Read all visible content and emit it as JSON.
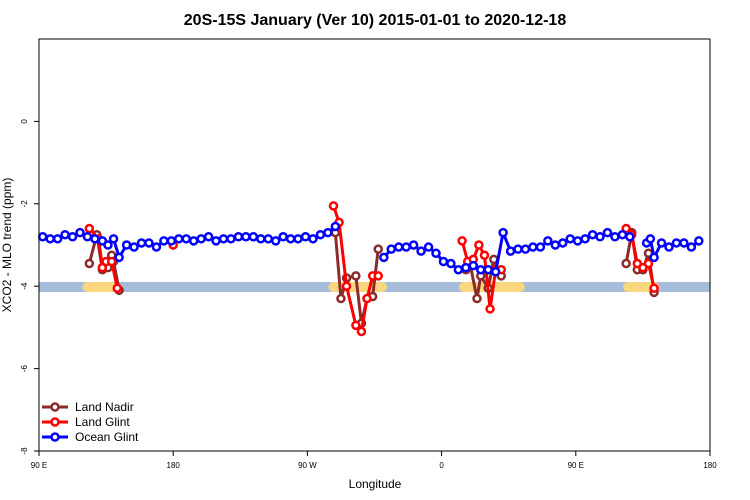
{
  "chart_data": {
    "type": "line",
    "title": "20S-15S January (Ver 10)   2015-01-01 to 2020-12-18",
    "xlabel": "Longitude",
    "ylabel": "XCO2 - MLO trend (ppm)",
    "xlim": [
      0,
      360
    ],
    "ylim": [
      -8,
      2
    ],
    "x_ticks": [
      {
        "value": 0,
        "label": "90 E"
      },
      {
        "value": 72,
        "label": "180"
      },
      {
        "value": 144,
        "label": "90 W"
      },
      {
        "value": 216,
        "label": "0"
      },
      {
        "value": 288,
        "label": "90 E"
      },
      {
        "value": 360,
        "label": "180"
      }
    ],
    "y_ticks": [
      {
        "value": 0,
        "label": "0"
      },
      {
        "value": -2,
        "label": "-2"
      },
      {
        "value": -4,
        "label": "-4"
      },
      {
        "value": -6,
        "label": "-6"
      },
      {
        "value": -8,
        "label": "-8"
      }
    ],
    "land_mask": {
      "y": -4.02,
      "ocean_color": "#a5bddb",
      "land_color": "#fad77f",
      "land_segments": [
        [
          26,
          40
        ],
        [
          158,
          184
        ],
        [
          228,
          258
        ],
        [
          316,
          330
        ]
      ]
    },
    "series": [
      {
        "name": "Land Nadir",
        "color": "#8b2b2b",
        "segments": [
          [
            [
              27,
              -3.45
            ],
            [
              31,
              -2.75
            ],
            [
              34,
              -3.6
            ],
            [
              37,
              -3.55
            ],
            [
              39,
              -3.25
            ],
            [
              40,
              -3.4
            ],
            [
              43,
              -4.1
            ]
          ],
          [
            [
              159,
              -2.7
            ],
            [
              162,
              -4.3
            ],
            [
              165,
              -3.8
            ],
            [
              170,
              -3.75
            ],
            [
              173,
              -4.9
            ],
            [
              176,
              -4.3
            ],
            [
              179,
              -4.25
            ],
            [
              182,
              -3.1
            ]
          ],
          [
            [
              229,
              -3.6
            ],
            [
              231,
              -3.4
            ],
            [
              235,
              -4.3
            ],
            [
              237,
              -3.75
            ],
            [
              241,
              -4.05
            ],
            [
              244,
              -3.35
            ],
            [
              248,
              -3.75
            ]
          ],
          [
            [
              315,
              -3.45
            ],
            [
              318,
              -2.7
            ],
            [
              321,
              -3.6
            ],
            [
              324,
              -3.6
            ],
            [
              327,
              -3.2
            ],
            [
              330,
              -4.15
            ]
          ]
        ]
      },
      {
        "name": "Land Glint",
        "color": "#ff0000",
        "segments": [
          [
            [
              27,
              -2.6
            ],
            [
              32,
              -2.85
            ],
            [
              34,
              -3.55
            ],
            [
              36,
              -3.4
            ],
            [
              39,
              -3.4
            ],
            [
              42,
              -4.05
            ]
          ],
          [
            [
              72,
              -3.0
            ]
          ],
          [
            [
              158,
              -2.05
            ],
            [
              161,
              -2.45
            ],
            [
              165,
              -4.0
            ],
            [
              170,
              -4.95
            ],
            [
              173,
              -5.1
            ],
            [
              176,
              -4.3
            ],
            [
              179,
              -3.75
            ],
            [
              182,
              -3.75
            ]
          ],
          [
            [
              227,
              -2.9
            ],
            [
              230,
              -3.4
            ],
            [
              233,
              -3.35
            ],
            [
              236,
              -3.0
            ],
            [
              239,
              -3.25
            ],
            [
              242,
              -4.55
            ],
            [
              245,
              -3.6
            ],
            [
              248,
              -3.6
            ]
          ],
          [
            [
              315,
              -2.6
            ],
            [
              318,
              -2.75
            ],
            [
              321,
              -3.45
            ],
            [
              324,
              -3.55
            ],
            [
              327,
              -3.45
            ],
            [
              330,
              -4.05
            ]
          ]
        ]
      },
      {
        "name": "Ocean Glint",
        "color": "#0000ff",
        "segments": [
          [
            [
              2,
              -2.8
            ],
            [
              6,
              -2.85
            ],
            [
              10,
              -2.85
            ],
            [
              14,
              -2.75
            ],
            [
              18,
              -2.8
            ],
            [
              22,
              -2.7
            ],
            [
              26,
              -2.8
            ],
            [
              30,
              -2.85
            ],
            [
              34,
              -2.9
            ],
            [
              37,
              -3.0
            ],
            [
              40,
              -2.85
            ],
            [
              43,
              -3.3
            ],
            [
              47,
              -3.0
            ],
            [
              51,
              -3.05
            ],
            [
              55,
              -2.95
            ],
            [
              59,
              -2.95
            ],
            [
              63,
              -3.05
            ],
            [
              67,
              -2.9
            ],
            [
              71,
              -2.9
            ],
            [
              75,
              -2.85
            ],
            [
              79,
              -2.85
            ],
            [
              83,
              -2.9
            ],
            [
              87,
              -2.85
            ],
            [
              91,
              -2.8
            ],
            [
              95,
              -2.9
            ],
            [
              99,
              -2.85
            ],
            [
              103,
              -2.85
            ],
            [
              107,
              -2.8
            ],
            [
              111,
              -2.8
            ],
            [
              115,
              -2.8
            ],
            [
              119,
              -2.85
            ],
            [
              123,
              -2.85
            ],
            [
              127,
              -2.9
            ],
            [
              131,
              -2.8
            ],
            [
              135,
              -2.85
            ],
            [
              139,
              -2.85
            ],
            [
              143,
              -2.8
            ],
            [
              147,
              -2.85
            ],
            [
              151,
              -2.75
            ],
            [
              155,
              -2.7
            ],
            [
              159,
              -2.55
            ]
          ],
          [
            [
              185,
              -3.3
            ],
            [
              189,
              -3.1
            ],
            [
              193,
              -3.05
            ],
            [
              197,
              -3.05
            ],
            [
              201,
              -3.0
            ],
            [
              205,
              -3.15
            ],
            [
              209,
              -3.05
            ],
            [
              213,
              -3.2
            ],
            [
              217,
              -3.4
            ],
            [
              221,
              -3.45
            ],
            [
              225,
              -3.6
            ],
            [
              229,
              -3.55
            ],
            [
              233,
              -3.5
            ],
            [
              237,
              -3.6
            ],
            [
              241,
              -3.6
            ],
            [
              245,
              -3.65
            ],
            [
              249,
              -2.7
            ],
            [
              253,
              -3.15
            ],
            [
              257,
              -3.1
            ],
            [
              261,
              -3.1
            ],
            [
              265,
              -3.05
            ],
            [
              269,
              -3.05
            ],
            [
              273,
              -2.9
            ],
            [
              277,
              -3.0
            ],
            [
              281,
              -2.95
            ],
            [
              285,
              -2.85
            ],
            [
              289,
              -2.9
            ],
            [
              293,
              -2.85
            ],
            [
              297,
              -2.75
            ],
            [
              301,
              -2.8
            ],
            [
              305,
              -2.7
            ],
            [
              309,
              -2.8
            ],
            [
              313,
              -2.75
            ],
            [
              317,
              -2.8
            ]
          ],
          [
            [
              326,
              -2.95
            ],
            [
              328,
              -2.85
            ],
            [
              330,
              -3.3
            ],
            [
              334,
              -2.95
            ],
            [
              338,
              -3.05
            ],
            [
              342,
              -2.95
            ],
            [
              346,
              -2.95
            ],
            [
              350,
              -3.05
            ],
            [
              354,
              -2.9
            ]
          ]
        ]
      }
    ],
    "legend": {
      "position": "bottom-left",
      "entries": [
        "Land Nadir",
        "Land Glint",
        "Ocean Glint"
      ]
    }
  }
}
